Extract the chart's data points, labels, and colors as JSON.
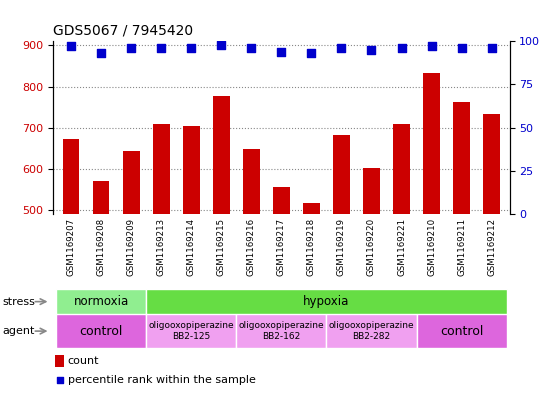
{
  "title": "GDS5067 / 7945420",
  "samples": [
    "GSM1169207",
    "GSM1169208",
    "GSM1169209",
    "GSM1169213",
    "GSM1169214",
    "GSM1169215",
    "GSM1169216",
    "GSM1169217",
    "GSM1169218",
    "GSM1169219",
    "GSM1169220",
    "GSM1169221",
    "GSM1169210",
    "GSM1169211",
    "GSM1169212"
  ],
  "counts": [
    672,
    570,
    644,
    710,
    704,
    778,
    648,
    556,
    516,
    682,
    603,
    710,
    832,
    762,
    734
  ],
  "percentiles": [
    97,
    93,
    96,
    96,
    96,
    98,
    96,
    94,
    93,
    96,
    95,
    96,
    97,
    96,
    96
  ],
  "bar_color": "#cc0000",
  "dot_color": "#0000cc",
  "ylim_left": [
    490,
    910
  ],
  "ylim_right": [
    0,
    100
  ],
  "yticks_left": [
    500,
    600,
    700,
    800,
    900
  ],
  "yticks_right": [
    0,
    25,
    50,
    75,
    100
  ],
  "stress_row": [
    {
      "label": "normoxia",
      "start": 0,
      "end": 3,
      "color": "#90ee90"
    },
    {
      "label": "hypoxia",
      "start": 3,
      "end": 15,
      "color": "#66dd44"
    }
  ],
  "agent_row": [
    {
      "label": "control",
      "start": 0,
      "end": 3,
      "color": "#dd66dd",
      "fontsize": 9,
      "bold": false
    },
    {
      "label": "oligooxopiperazine\nBB2-125",
      "start": 3,
      "end": 6,
      "color": "#f0a0f0",
      "fontsize": 6.5,
      "bold": false
    },
    {
      "label": "oligooxopiperazine\nBB2-162",
      "start": 6,
      "end": 9,
      "color": "#f0a0f0",
      "fontsize": 6.5,
      "bold": false
    },
    {
      "label": "oligooxopiperazine\nBB2-282",
      "start": 9,
      "end": 12,
      "color": "#f0a0f0",
      "fontsize": 6.5,
      "bold": false
    },
    {
      "label": "control",
      "start": 12,
      "end": 15,
      "color": "#dd66dd",
      "fontsize": 9,
      "bold": false
    }
  ],
  "tick_bg_color": "#c8c8c8",
  "bg_color": "#ffffff",
  "grid_color": "#888888",
  "dot_size": 28,
  "bar_width": 0.55
}
